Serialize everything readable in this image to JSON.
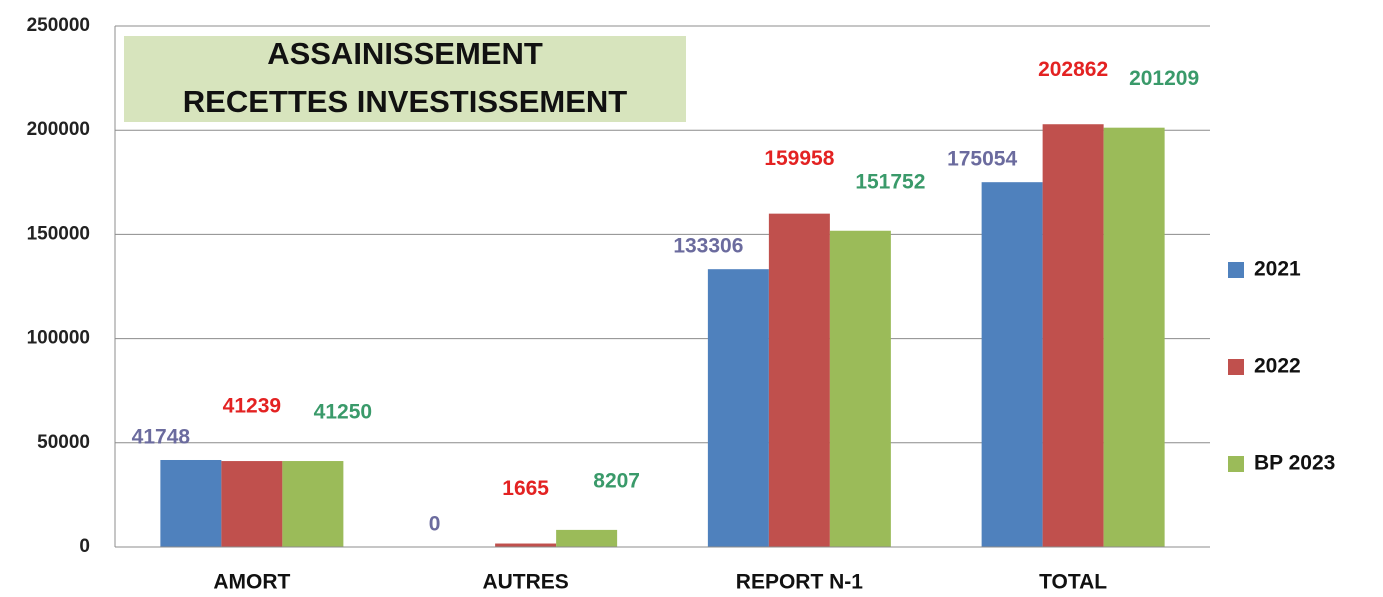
{
  "chart_data": {
    "type": "bar",
    "title": [
      "ASSAINISSEMENT",
      "RECETTES INVESTISSEMENT"
    ],
    "categories": [
      "AMORT",
      "AUTRES",
      "REPORT N-1",
      "TOTAL"
    ],
    "series": [
      {
        "name": "2021",
        "color": "#4f81bd",
        "label_color": "#6b6b9e",
        "values": [
          41748,
          0,
          133306,
          175054
        ]
      },
      {
        "name": "2022",
        "color": "#c0504d",
        "label_color": "#e32222",
        "values": [
          41239,
          1665,
          159958,
          202862
        ]
      },
      {
        "name": "BP 2023",
        "color": "#9bbb59",
        "label_color": "#3a9a6a",
        "values": [
          41250,
          8207,
          151752,
          201209
        ]
      }
    ],
    "ylim": [
      0,
      250000
    ],
    "yticks": [
      0,
      50000,
      100000,
      150000,
      200000,
      250000
    ],
    "grid": true,
    "legend": "right"
  }
}
